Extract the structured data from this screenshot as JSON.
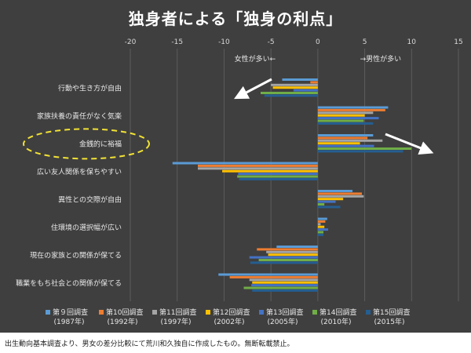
{
  "title": "独身者による「独身の利点」",
  "note": "出生動向基本調査より、男女の差分比較にて荒川和久独自に作成したもの。無断転載禁止。",
  "arrow_color": "#ffffff",
  "highlight_color": "#f2e234",
  "grid_color": "#5c5c5c",
  "chart_data": {
    "type": "bar",
    "orientation": "horizontal",
    "xlim": [
      -20,
      15
    ],
    "xticks": [
      -20,
      -15,
      -10,
      -5,
      0,
      5,
      10,
      15
    ],
    "tick_labels": [
      "-20",
      "-15",
      "-10",
      "-5",
      "0",
      "5",
      "10",
      "15"
    ],
    "grid": true,
    "legend_position": "bottom",
    "annotations": [
      {
        "text": "女性が多い←",
        "role": "left-side"
      },
      {
        "text": "→男性が多い",
        "role": "right-side"
      }
    ],
    "categories": [
      "行動や生き方が自由",
      "家族扶養の責任がなく気楽",
      "金銭的に裕福",
      "広い友人関係を保ちやすい",
      "異性との交際が自由",
      "住環境の選択幅が広い",
      "現在の家族との関係が保てる",
      "職業をもち社会との関係が保てる"
    ],
    "highlight_category": "金銭的に裕福",
    "series": [
      {
        "name": "第９回調査",
        "year": "(1987年)",
        "color": "#5b9bd5",
        "values": [
          -3.8,
          7.5,
          5.9,
          -15.5,
          3.7,
          1.0,
          -4.4,
          -10.6
        ]
      },
      {
        "name": "第10回調査",
        "year": "(1992年)",
        "color": "#ed7d31",
        "values": [
          -0.8,
          7.2,
          5.3,
          -12.8,
          4.7,
          0.8,
          -6.5,
          -9.4
        ]
      },
      {
        "name": "第11回調査",
        "year": "(1997年)",
        "color": "#a5a5a5",
        "values": [
          -5.0,
          5.9,
          6.9,
          -12.8,
          4.9,
          0.3,
          -5.5,
          -7.3
        ]
      },
      {
        "name": "第12回調査",
        "year": "(2002年)",
        "color": "#ffc000",
        "values": [
          -4.8,
          5.0,
          4.5,
          -10.2,
          2.7,
          0.7,
          -5.3,
          -7.0
        ]
      },
      {
        "name": "第13回調査",
        "year": "(2005年)",
        "color": "#4472c4",
        "values": [
          -2.6,
          6.5,
          6.0,
          -8.5,
          1.9,
          1.1,
          -7.3,
          -7.1
        ]
      },
      {
        "name": "第14回調査",
        "year": "(2010年)",
        "color": "#70ad47",
        "values": [
          -6.1,
          4.9,
          10.0,
          -8.6,
          0.7,
          0.6,
          -6.3,
          -7.9
        ]
      },
      {
        "name": "第15回調査",
        "year": "(2015年)",
        "color": "#255e91",
        "values": [
          -5.7,
          5.9,
          9.1,
          -8.4,
          2.4,
          0.6,
          -7.2,
          -7.0
        ]
      }
    ]
  }
}
